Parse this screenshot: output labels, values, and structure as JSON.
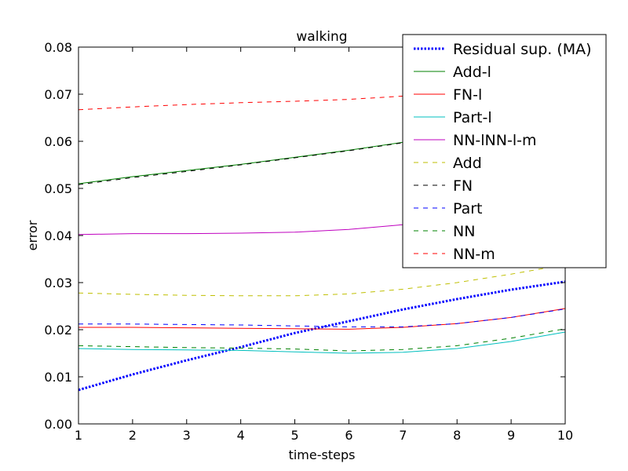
{
  "chart_data": {
    "type": "line",
    "title": "walking",
    "xlabel": "time-steps",
    "ylabel": "error",
    "xlim": [
      1,
      10
    ],
    "ylim": [
      0.0,
      0.08
    ],
    "xticks": [
      1,
      2,
      3,
      4,
      5,
      6,
      7,
      8,
      9,
      10
    ],
    "xtick_labels": [
      "1",
      "2",
      "3",
      "4",
      "5",
      "6",
      "7",
      "8",
      "9",
      "10"
    ],
    "yticks": [
      0.0,
      0.01,
      0.02,
      0.03,
      0.04,
      0.05,
      0.06,
      0.07,
      0.08
    ],
    "ytick_labels": [
      "0.00",
      "0.01",
      "0.02",
      "0.03",
      "0.04",
      "0.05",
      "0.06",
      "0.07",
      "0.08"
    ],
    "grid": false,
    "legend_position": "upper right",
    "x": [
      1,
      2,
      3,
      4,
      5,
      6,
      7,
      8,
      9,
      10
    ],
    "series": [
      {
        "name": "Residual sup. (MA)",
        "color": "#0000ff",
        "style": "dotted-thick",
        "values": [
          0.0072,
          0.0105,
          0.0135,
          0.0163,
          0.0193,
          0.0218,
          0.0243,
          0.0265,
          0.0285,
          0.0302
        ]
      },
      {
        "name": "Add-l",
        "color": "#008000",
        "style": "solid",
        "values": [
          0.051,
          0.0525,
          0.0538,
          0.0551,
          0.0566,
          0.0581,
          0.0598,
          0.0618,
          0.064,
          0.0662
        ]
      },
      {
        "name": "FN-l",
        "color": "#ff0000",
        "style": "solid",
        "values": [
          0.0205,
          0.0205,
          0.0204,
          0.0203,
          0.0202,
          0.0201,
          0.0205,
          0.0213,
          0.0226,
          0.0245
        ]
      },
      {
        "name": "Part-l",
        "color": "#00bfbf",
        "style": "solid",
        "values": [
          0.016,
          0.0158,
          0.0157,
          0.0156,
          0.0153,
          0.015,
          0.0152,
          0.016,
          0.0175,
          0.0195
        ]
      },
      {
        "name": "NN-lNN-l-m",
        "color": "#bf00bf",
        "style": "solid",
        "values": [
          0.0402,
          0.0404,
          0.0404,
          0.0405,
          0.0407,
          0.0413,
          0.0423,
          0.0436,
          0.0452,
          0.047
        ]
      },
      {
        "name": "Add",
        "color": "#bfbf00",
        "style": "dashed",
        "values": [
          0.0278,
          0.0275,
          0.0273,
          0.0272,
          0.0272,
          0.0276,
          0.0286,
          0.03,
          0.0318,
          0.0338
        ]
      },
      {
        "name": "FN",
        "color": "#000000",
        "style": "dashed",
        "values": [
          0.0508,
          0.0523,
          0.0536,
          0.055,
          0.0565,
          0.058,
          0.0597,
          0.0617,
          0.0639,
          0.0661
        ]
      },
      {
        "name": "Part",
        "color": "#0000ff",
        "style": "dashed",
        "values": [
          0.0212,
          0.0212,
          0.0211,
          0.021,
          0.0208,
          0.0206,
          0.0206,
          0.0213,
          0.0226,
          0.0244
        ]
      },
      {
        "name": "NN",
        "color": "#008000",
        "style": "dashed",
        "values": [
          0.0166,
          0.0164,
          0.0162,
          0.0161,
          0.0159,
          0.0155,
          0.0158,
          0.0166,
          0.0182,
          0.0202
        ]
      },
      {
        "name": "NN-m",
        "color": "#ff0000",
        "style": "dashed",
        "values": [
          0.0667,
          0.0673,
          0.0678,
          0.0682,
          0.0685,
          0.0689,
          0.0696,
          0.0707,
          0.0722,
          0.074
        ]
      }
    ]
  }
}
